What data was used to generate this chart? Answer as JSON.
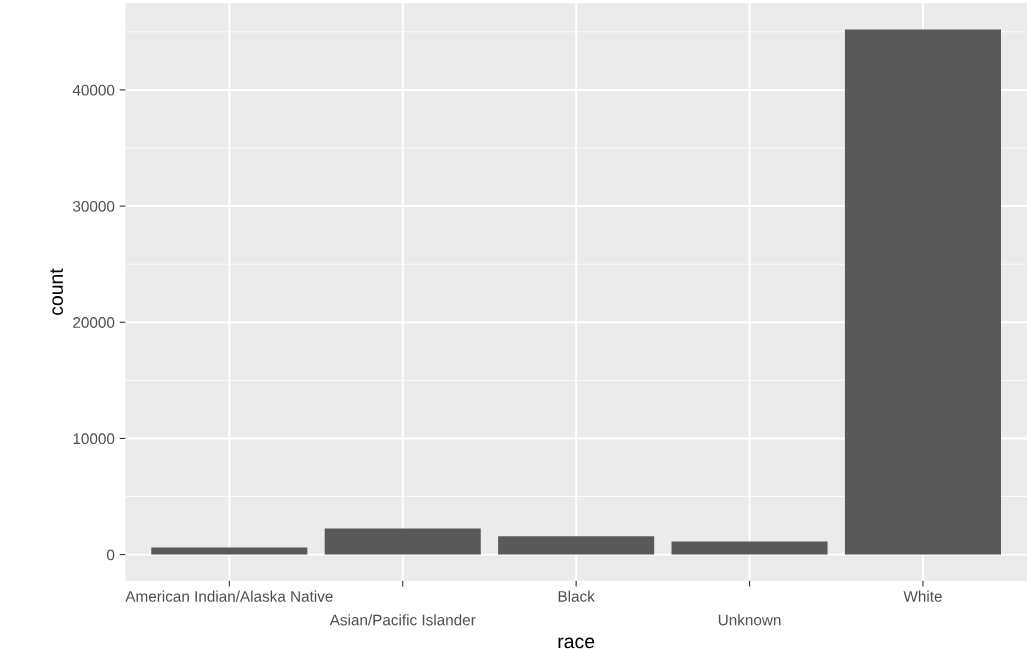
{
  "chart_data": {
    "type": "bar",
    "xlabel": "race",
    "ylabel": "count",
    "categories": [
      "American Indian/Alaska Native",
      "Asian/Pacific Islander",
      "Black",
      "Unknown",
      "White"
    ],
    "values": [
      610,
      2250,
      1580,
      1130,
      45200
    ],
    "color": "#595959",
    "ylim": [
      -2260,
      47460
    ],
    "yticks": [
      0,
      10000,
      20000,
      30000,
      40000
    ],
    "grid": true
  }
}
